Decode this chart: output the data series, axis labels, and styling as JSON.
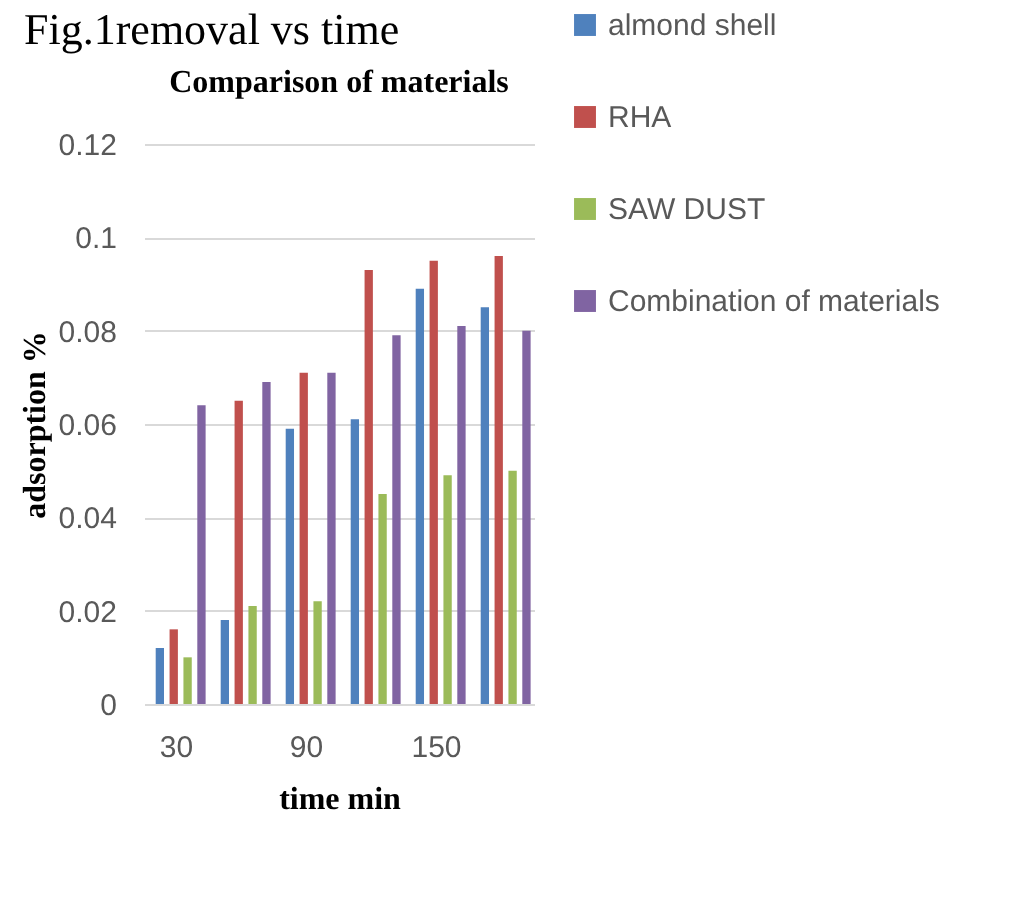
{
  "chart_data": {
    "type": "bar",
    "title": "Comparison of materials",
    "xlabel": "time min",
    "ylabel": "adsorption %",
    "annotations": [
      "Fig.1removal vs time"
    ],
    "categories": [
      "30",
      null,
      "90",
      null,
      "150",
      null
    ],
    "series": [
      {
        "name": "almond shell",
        "color": "#4f81bd",
        "values": [
          0.012,
          0.018,
          0.059,
          0.061,
          0.089,
          0.085
        ]
      },
      {
        "name": "RHA",
        "color": "#c0504d",
        "values": [
          0.016,
          0.065,
          0.071,
          0.093,
          0.095,
          0.096
        ]
      },
      {
        "name": "SAW DUST",
        "color": "#9bbb59",
        "values": [
          0.01,
          0.021,
          0.022,
          0.045,
          0.049,
          0.05
        ]
      },
      {
        "name": "Combination of materials",
        "color": "#8064a2",
        "values": [
          0.064,
          0.069,
          0.071,
          0.079,
          0.081,
          0.08
        ]
      }
    ],
    "ylim": [
      0,
      0.12
    ],
    "yticks": [
      0,
      0.02,
      0.04,
      0.06,
      0.08,
      0.1,
      0.12
    ],
    "grid": "y",
    "legend": "right"
  }
}
